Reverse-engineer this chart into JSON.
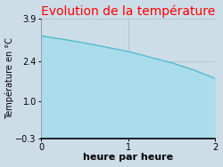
{
  "title": "Evolution de la température",
  "title_color": "#ff0000",
  "xlabel": "heure par heure",
  "ylabel": "Température en °C",
  "xlim": [
    0,
    2
  ],
  "ylim": [
    -0.3,
    3.9
  ],
  "xticks": [
    0,
    1,
    2
  ],
  "yticks": [
    -0.3,
    1.0,
    2.4,
    3.9
  ],
  "x_data": [
    0,
    0.1,
    0.25,
    0.5,
    0.75,
    1.0,
    1.25,
    1.5,
    1.75,
    2.0
  ],
  "y_data": [
    3.3,
    3.25,
    3.18,
    3.05,
    2.9,
    2.75,
    2.55,
    2.35,
    2.1,
    1.8
  ],
  "line_color": "#55bbcc",
  "fill_color": "#aadcec",
  "fill_alpha": 1.0,
  "background_color": "#ccdde8",
  "plot_bg_color": "#ccdde8",
  "grid_color": "#aabbcc",
  "axis_label_fontsize": 7,
  "title_fontsize": 10,
  "tick_fontsize": 7,
  "xlabel_fontsize": 8,
  "xlabel_fontweight": "bold"
}
